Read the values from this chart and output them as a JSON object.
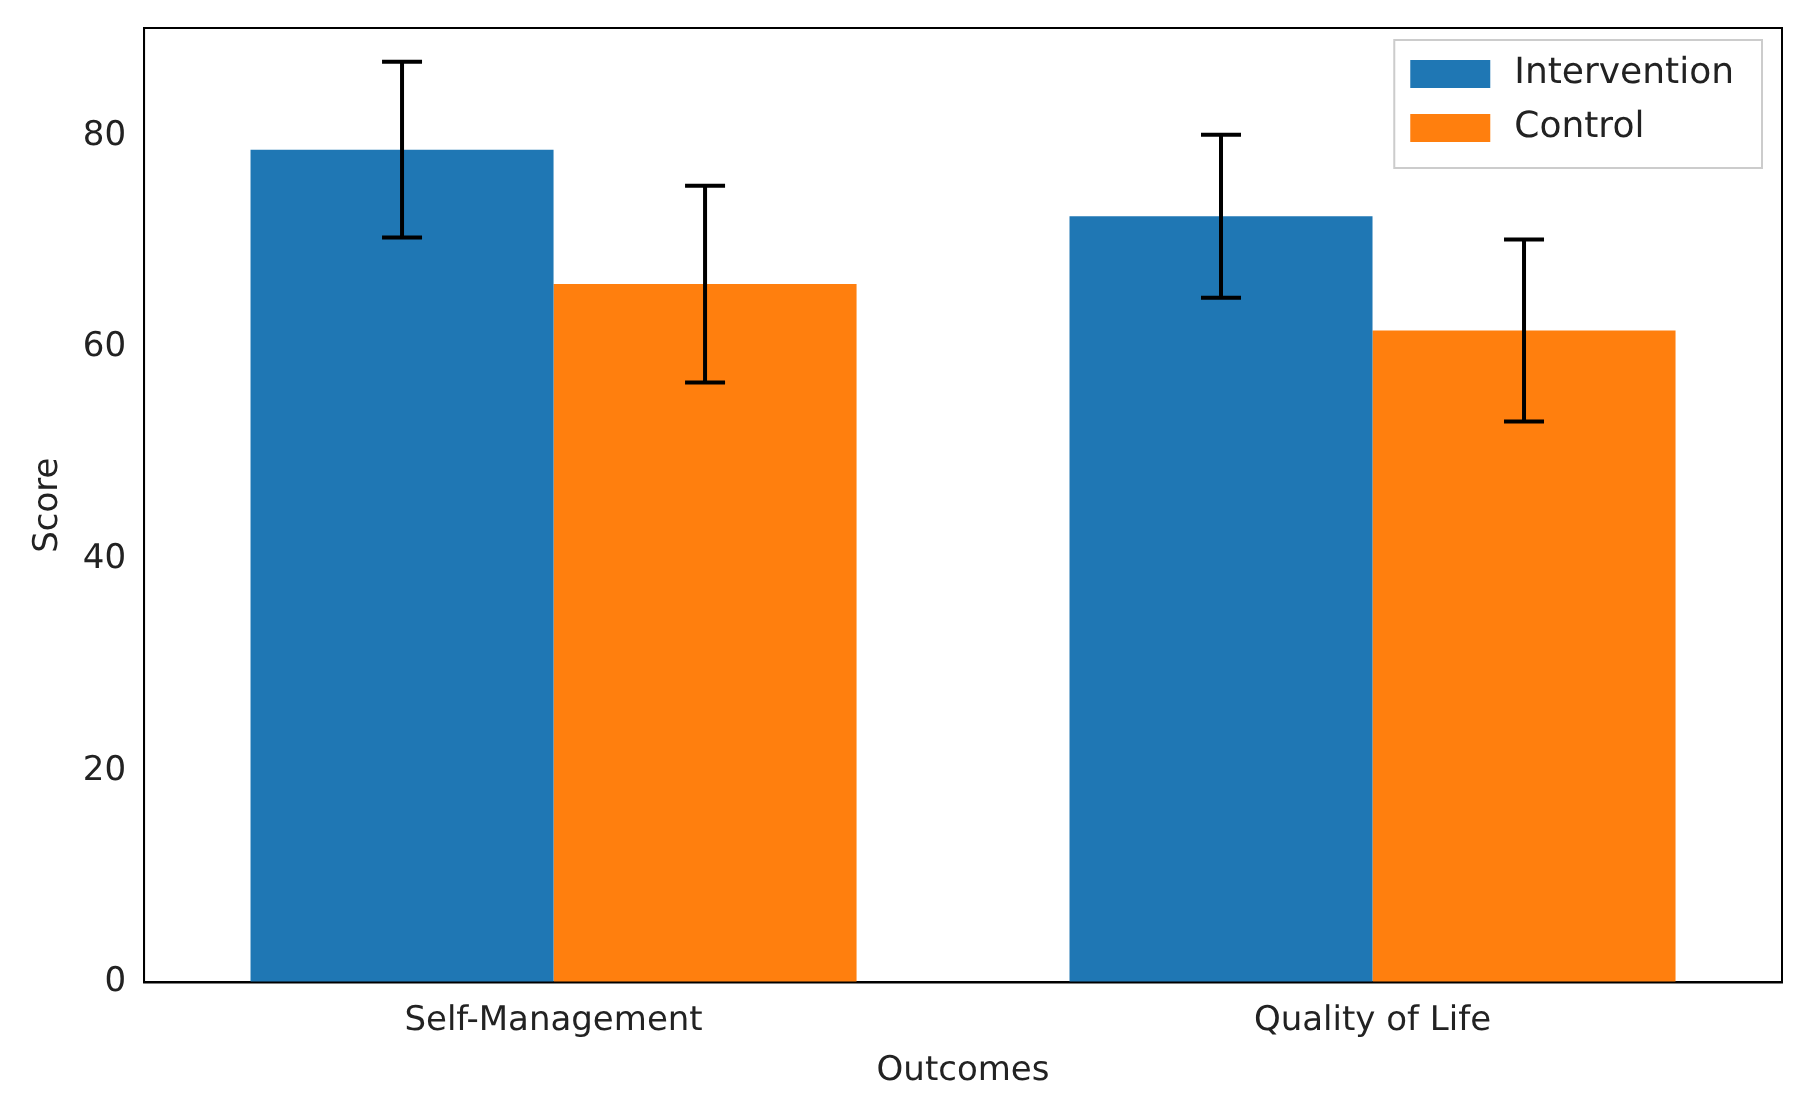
{
  "chart_data": {
    "type": "bar",
    "xlabel": "Outcomes",
    "ylabel": "Score",
    "categories": [
      "Self-Management",
      "Quality of Life"
    ],
    "series": [
      {
        "name": "Intervention",
        "color": "#1f77b4",
        "values": [
          78.7,
          72.4
        ],
        "errors": [
          8.3,
          7.7
        ]
      },
      {
        "name": "Control",
        "color": "#ff7f0e",
        "values": [
          66.0,
          61.6
        ],
        "errors": [
          9.3,
          8.6
        ]
      }
    ],
    "ylim": [
      0,
      90.2
    ],
    "yticks": [
      0,
      20,
      40,
      60,
      80
    ],
    "grid": false,
    "legend": "top right"
  }
}
